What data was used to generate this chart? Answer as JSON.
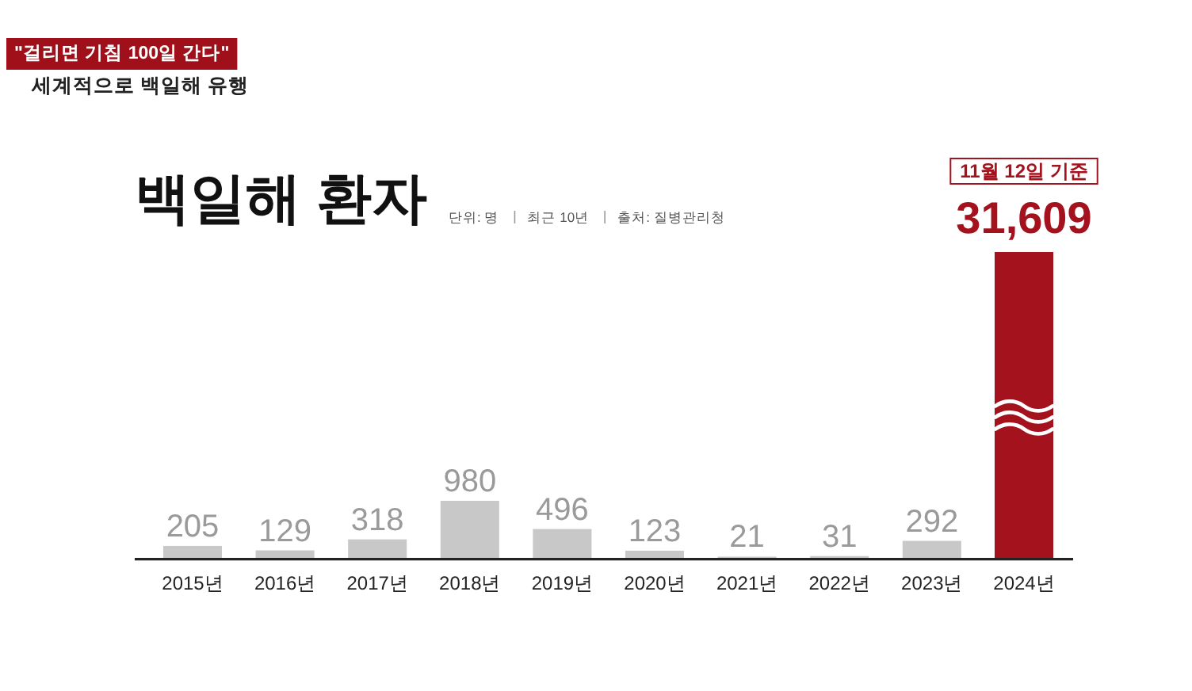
{
  "chart_data": [
    {
      "type": "bar",
      "title": "백일해 환자",
      "subtitle": "단위: 명",
      "annotations": [
        "\"걸리면 기침 100일 간다\"",
        "세계적으로 백일해 유행",
        "최근 10년",
        "출처: 질병관리청"
      ],
      "categories": [
        "2015년",
        "2016년",
        "2017년",
        "2018년",
        "2019년",
        "2020년",
        "2021년",
        "2022년",
        "2023년"
      ],
      "values": [
        205,
        129,
        318,
        980,
        496,
        123,
        21,
        31,
        292
      ],
      "color": "#c8c8c8",
      "data_labels": true
    },
    {
      "type": "bar",
      "categories": [
        "2024년"
      ],
      "values": [
        31609
      ],
      "color": "#a3121d",
      "value_labels": [
        "31,609"
      ],
      "annotations": [
        "11월 12일 기준"
      ]
    }
  ]
}
